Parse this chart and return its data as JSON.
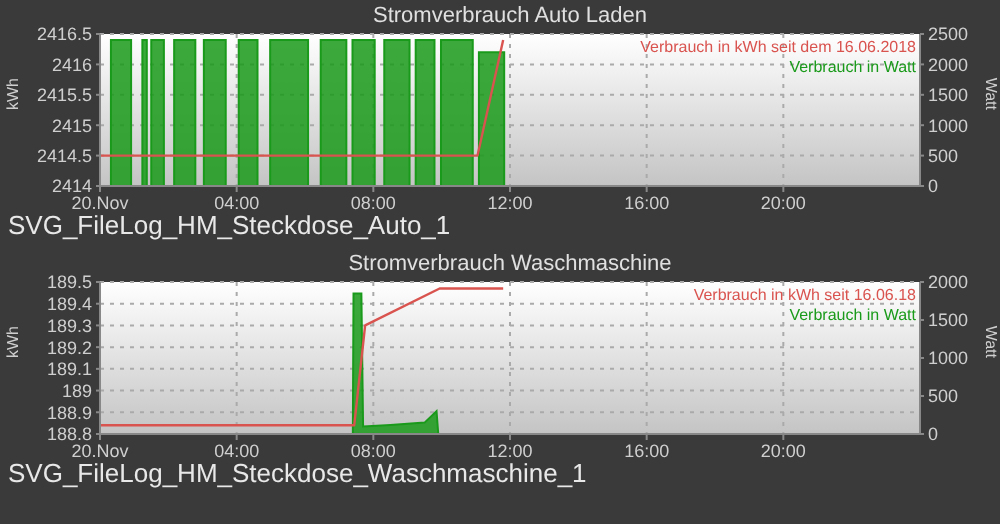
{
  "chart_data": [
    {
      "type": "line",
      "title": "Stromverbrauch Auto Laden",
      "ylabel": "kWh",
      "y2label": "Watt",
      "xlim": [
        0,
        24
      ],
      "xticks": [
        {
          "value": 0,
          "label": "20.Nov"
        },
        {
          "value": 4,
          "label": "04:00"
        },
        {
          "value": 8,
          "label": "08:00"
        },
        {
          "value": 12,
          "label": "12:00"
        },
        {
          "value": 16,
          "label": "16:00"
        },
        {
          "value": 20,
          "label": "20:00"
        }
      ],
      "ylim": [
        2414,
        2416.5
      ],
      "yticks": [
        2414,
        2414.5,
        2415,
        2415.5,
        2416,
        2416.5
      ],
      "y2lim": [
        0,
        2500
      ],
      "y2ticks": [
        0,
        500,
        1000,
        1500,
        2000,
        2500
      ],
      "grid": true,
      "legend": "top right",
      "annotations": [
        "SVG_FileLog_HM_Steckdose_Auto_1"
      ],
      "series": [
        {
          "name": "Verbrauch in kWh seit dem 16.06.2018",
          "color": "#d9534f",
          "type": "line",
          "x": [
            0,
            11.05,
            11.8
          ],
          "values": [
            2414.5,
            2414.5,
            2416.4
          ]
        },
        {
          "name": "Verbrauch in Watt",
          "color": "#1a9a1a",
          "type": "area",
          "axis": "y2",
          "x": [
            0,
            0.32,
            0.32,
            0.91,
            0.91,
            1.24,
            1.24,
            1.37,
            1.37,
            1.5,
            1.5,
            1.87,
            1.87,
            2.17,
            2.17,
            2.79,
            2.79,
            3.04,
            3.04,
            3.68,
            3.68,
            4.06,
            4.06,
            4.61,
            4.61,
            4.98,
            4.98,
            6.09,
            6.09,
            6.46,
            6.46,
            7.21,
            7.21,
            7.39,
            7.39,
            8.04,
            8.04,
            8.32,
            8.32,
            9.06,
            9.06,
            9.24,
            9.24,
            9.79,
            9.79,
            9.98,
            9.98,
            10.91,
            10.91,
            11.09,
            11.09,
            11.83,
            11.83,
            24
          ],
          "values": [
            0,
            0,
            2400,
            2400,
            0,
            0,
            2400,
            2400,
            0,
            0,
            2400,
            2400,
            0,
            0,
            2400,
            2400,
            0,
            0,
            2400,
            2400,
            0,
            0,
            2400,
            2400,
            0,
            0,
            2400,
            2400,
            0,
            0,
            2400,
            2400,
            0,
            0,
            2400,
            2400,
            0,
            0,
            2400,
            2400,
            0,
            0,
            2400,
            2400,
            0,
            0,
            2400,
            2400,
            0,
            0,
            2200,
            2200,
            0,
            0
          ]
        }
      ]
    },
    {
      "type": "line",
      "title": "Stromverbrauch Waschmaschine",
      "ylabel": "kWh",
      "y2label": "Watt",
      "xlim": [
        0,
        24
      ],
      "xticks": [
        {
          "value": 0,
          "label": "20.Nov"
        },
        {
          "value": 4,
          "label": "04:00"
        },
        {
          "value": 8,
          "label": "08:00"
        },
        {
          "value": 12,
          "label": "12:00"
        },
        {
          "value": 16,
          "label": "16:00"
        },
        {
          "value": 20,
          "label": "20:00"
        }
      ],
      "ylim": [
        188.8,
        189.5
      ],
      "yticks": [
        188.8,
        188.9,
        189,
        189.1,
        189.2,
        189.3,
        189.4,
        189.5
      ],
      "y2lim": [
        0,
        2000
      ],
      "y2ticks": [
        0,
        500,
        1000,
        1500,
        2000
      ],
      "grid": true,
      "legend": "top right",
      "annotations": [
        "SVG_FileLog_HM_Steckdose_Waschmaschine_1"
      ],
      "series": [
        {
          "name": "Verbrauch in kWh seit 16.06.18",
          "color": "#d9534f",
          "type": "line",
          "x": [
            0,
            7.44,
            7.76,
            9.94,
            11.8
          ],
          "values": [
            188.84,
            188.84,
            189.3,
            189.47,
            189.47
          ]
        },
        {
          "name": "Verbrauch in Watt",
          "color": "#1a9a1a",
          "type": "area",
          "axis": "y2",
          "x": [
            0,
            7.4,
            7.42,
            7.65,
            7.7,
            8.5,
            9.5,
            9.85,
            9.9,
            24
          ],
          "values": [
            0,
            0,
            1850,
            1850,
            100,
            120,
            150,
            300,
            0,
            0
          ]
        }
      ]
    }
  ]
}
